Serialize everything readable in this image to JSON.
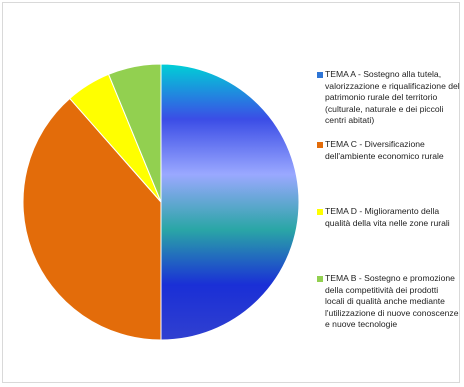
{
  "chart_data": {
    "type": "pie",
    "title": "",
    "start_angle_deg": 0,
    "direction": "clockwise",
    "legend_position": "right",
    "slices": [
      {
        "label": "TEMA A - Sostegno alla tutela, valorizzazione e riqualificazione del patrimonio rurale del territorio (culturale, naturale e dei piccoli centri abitati)",
        "value": 50.0,
        "color": "#2f6fd6",
        "gradient": [
          "#00d0d6",
          "#3b4de6",
          "#9aa8ff",
          "#2aa6a6",
          "#1a2fd6",
          "#3040d0"
        ]
      },
      {
        "label": "TEMA C - Diversificazione dell'ambiente economico rurale",
        "value": 38.5,
        "color": "#e36c0a"
      },
      {
        "label": "TEMA D - Miglioramento della qualità della vita nelle zone rurali",
        "value": 5.3,
        "color": "#ffff00"
      },
      {
        "label": "TEMA B - Sostegno e promozione della competitività dei prodotti locali di qualità anche mediante l'utilizzazione di nuove conoscenze e nuove tecnologie",
        "value": 6.2,
        "color": "#92d050"
      }
    ]
  },
  "legend": {
    "items": [
      {
        "text": "TEMA A - Sostegno alla tutela,\nvalorizzazione e riqualificazione del\npatrimonio rurale del territorio\n(culturale, naturale e dei piccoli\ncentri abitati)",
        "color": "#2e75d6"
      },
      {
        "text": "TEMA C - Diversificazione\ndell'ambiente economico rurale",
        "color": "#e36c0a"
      },
      {
        "text": "TEMA D - Miglioramento della\nqualità della vita nelle zone rurali",
        "color": "#ffff00"
      },
      {
        "text": "TEMA B - Sostegno e promozione\ndella competitività dei prodotti\nlocali di qualità anche mediante\nl'utilizzazione di nuove conoscenze\ne nuove tecnologie",
        "color": "#92d050"
      }
    ]
  }
}
